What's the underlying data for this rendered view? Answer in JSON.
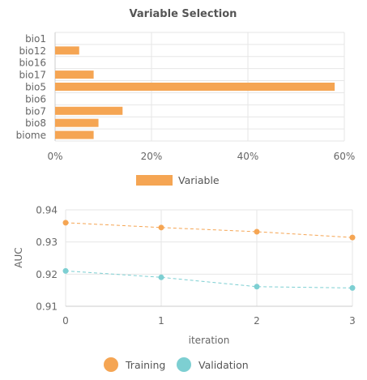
{
  "chart_data": [
    {
      "type": "bar",
      "orientation": "horizontal",
      "title": "Variable Selection",
      "categories": [
        "bio1",
        "bio12",
        "bio16",
        "bio17",
        "bio5",
        "bio6",
        "bio7",
        "bio8",
        "biome"
      ],
      "series": [
        {
          "name": "Variable",
          "values": [
            0,
            5,
            0,
            8,
            58,
            0,
            14,
            9,
            8
          ],
          "color": "#f5a553"
        }
      ],
      "xlim": [
        0,
        60
      ],
      "xticks": [
        0,
        20,
        40,
        60
      ],
      "xtick_labels": [
        "0%",
        "20%",
        "40%",
        "60%"
      ],
      "legend_position": "bottom",
      "grid": true
    },
    {
      "type": "line",
      "title": "",
      "xlabel": "iteration",
      "ylabel": "AUC",
      "x": [
        0,
        1,
        2,
        3
      ],
      "series": [
        {
          "name": "Training",
          "values": [
            0.936,
            0.9345,
            0.9332,
            0.9314
          ],
          "color": "#f5a553",
          "dashed": true
        },
        {
          "name": "Validation",
          "values": [
            0.921,
            0.919,
            0.9161,
            0.9157
          ],
          "color": "#7dcfd2",
          "dashed": true
        }
      ],
      "xlim": [
        0,
        3
      ],
      "ylim": [
        0.91,
        0.94
      ],
      "xticks": [
        0,
        1,
        2,
        3
      ],
      "yticks": [
        0.91,
        0.92,
        0.93,
        0.94
      ],
      "legend_position": "bottom",
      "grid": true
    }
  ]
}
